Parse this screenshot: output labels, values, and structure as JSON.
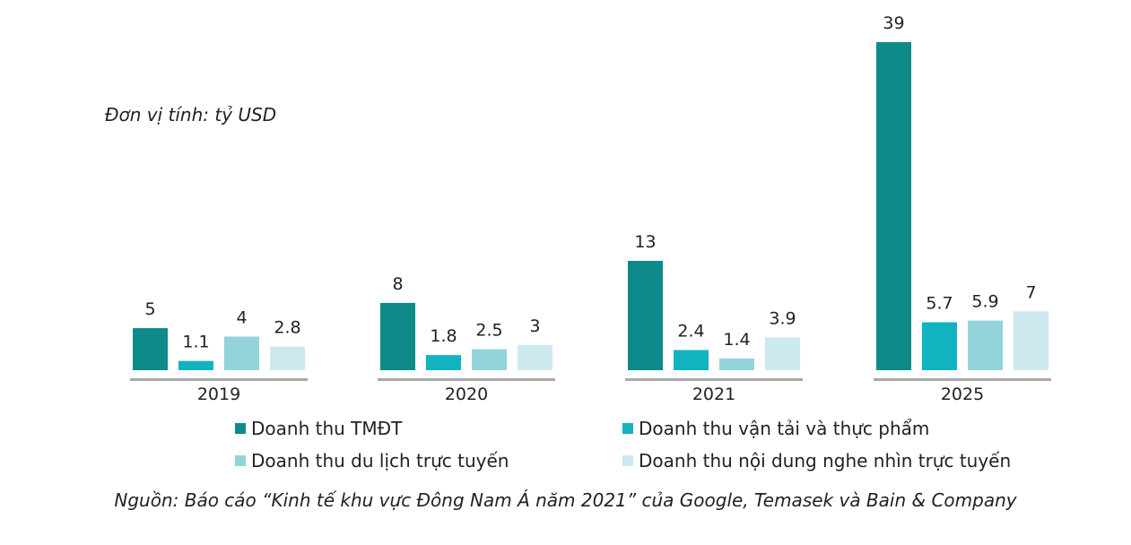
{
  "unit_label": "Đơn vị tính: tỷ USD",
  "source": "Nguồn: Báo cáo “Kinh tế khu vực Đông Nam Á năm 2021” của Google, Temasek và Bain & Company",
  "chart_data": {
    "type": "bar",
    "categories": [
      "2019",
      "2020",
      "2021",
      "2025"
    ],
    "series": [
      {
        "name": "Doanh thu TMĐT",
        "color": "#0e8a8a",
        "values": [
          5,
          8,
          13,
          39
        ],
        "labels": [
          "5",
          "8",
          "13",
          "39"
        ]
      },
      {
        "name": "Doanh thu vận tải và thực phẩm",
        "color": "#12b3c0",
        "values": [
          1.1,
          1.8,
          2.4,
          5.7
        ],
        "labels": [
          "1.1",
          "1.8",
          "2.4",
          "5.7"
        ]
      },
      {
        "name": "Doanh thu du lịch trực tuyến",
        "color": "#93d4da",
        "values": [
          4,
          2.5,
          1.4,
          5.9
        ],
        "labels": [
          "4",
          "2.5",
          "1.4",
          "5.9"
        ]
      },
      {
        "name": "Doanh thu nội dung nghe nhìn trực tuyến",
        "color": "#cbe9ef",
        "values": [
          2.8,
          3,
          3.9,
          7
        ],
        "labels": [
          "2.8",
          "3",
          "3.9",
          "7"
        ]
      }
    ],
    "ylim": [
      0,
      39
    ],
    "grid": false,
    "legend_position": "bottom"
  }
}
